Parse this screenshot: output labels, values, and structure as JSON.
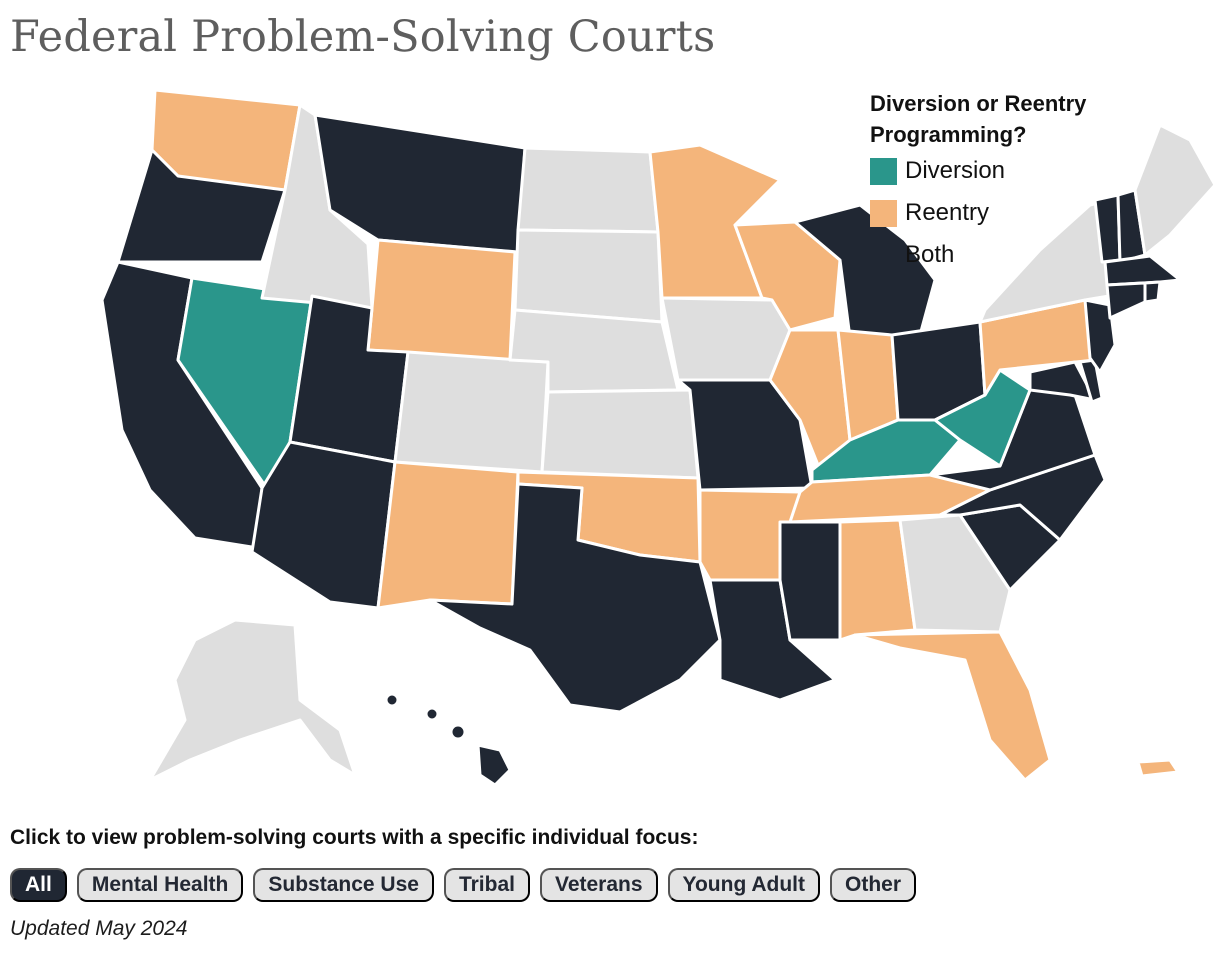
{
  "title": "Federal Problem-Solving Courts",
  "legend": {
    "title": "Diversion or Reentry Programming?",
    "items": [
      {
        "label": "Diversion",
        "color": "#2a968b"
      },
      {
        "label": "Reentry",
        "color": "#f4b57b"
      },
      {
        "label": "Both",
        "color": "#202733"
      }
    ]
  },
  "map": {
    "no_program_color": "#dedede",
    "states": [
      {
        "name": "Washington",
        "status": "Reentry"
      },
      {
        "name": "Oregon",
        "status": "Both"
      },
      {
        "name": "California",
        "status": "Both"
      },
      {
        "name": "Nevada",
        "status": "Diversion"
      },
      {
        "name": "Idaho",
        "status": "None"
      },
      {
        "name": "Montana",
        "status": "Both"
      },
      {
        "name": "Wyoming",
        "status": "Reentry"
      },
      {
        "name": "Utah",
        "status": "Both"
      },
      {
        "name": "Arizona",
        "status": "Both"
      },
      {
        "name": "Colorado",
        "status": "None"
      },
      {
        "name": "New Mexico",
        "status": "Reentry"
      },
      {
        "name": "North Dakota",
        "status": "None"
      },
      {
        "name": "South Dakota",
        "status": "None"
      },
      {
        "name": "Nebraska",
        "status": "None"
      },
      {
        "name": "Kansas",
        "status": "None"
      },
      {
        "name": "Oklahoma",
        "status": "Reentry"
      },
      {
        "name": "Texas",
        "status": "Both"
      },
      {
        "name": "Minnesota",
        "status": "Reentry"
      },
      {
        "name": "Iowa",
        "status": "None"
      },
      {
        "name": "Missouri",
        "status": "Both"
      },
      {
        "name": "Arkansas",
        "status": "Reentry"
      },
      {
        "name": "Louisiana",
        "status": "Both"
      },
      {
        "name": "Wisconsin",
        "status": "Reentry"
      },
      {
        "name": "Illinois",
        "status": "Reentry"
      },
      {
        "name": "Michigan",
        "status": "Both"
      },
      {
        "name": "Indiana",
        "status": "Reentry"
      },
      {
        "name": "Ohio",
        "status": "Both"
      },
      {
        "name": "Kentucky",
        "status": "Diversion"
      },
      {
        "name": "Tennessee",
        "status": "Reentry"
      },
      {
        "name": "Mississippi",
        "status": "Both"
      },
      {
        "name": "Alabama",
        "status": "Reentry"
      },
      {
        "name": "Georgia",
        "status": "None"
      },
      {
        "name": "Florida",
        "status": "Reentry"
      },
      {
        "name": "South Carolina",
        "status": "Both"
      },
      {
        "name": "North Carolina",
        "status": "Both"
      },
      {
        "name": "Virginia",
        "status": "Both"
      },
      {
        "name": "West Virginia",
        "status": "Diversion"
      },
      {
        "name": "Pennsylvania",
        "status": "Reentry"
      },
      {
        "name": "New York",
        "status": "None"
      },
      {
        "name": "New Jersey",
        "status": "Both"
      },
      {
        "name": "Delaware",
        "status": "Both"
      },
      {
        "name": "Maryland",
        "status": "Both"
      },
      {
        "name": "Vermont",
        "status": "Both"
      },
      {
        "name": "New Hampshire",
        "status": "Both"
      },
      {
        "name": "Maine",
        "status": "None"
      },
      {
        "name": "Massachusetts",
        "status": "Both"
      },
      {
        "name": "Connecticut",
        "status": "Both"
      },
      {
        "name": "Rhode Island",
        "status": "Both"
      },
      {
        "name": "Alaska",
        "status": "None"
      },
      {
        "name": "Hawaii",
        "status": "Both"
      },
      {
        "name": "Puerto Rico",
        "status": "Reentry"
      }
    ]
  },
  "filters": {
    "prompt": "Click to view problem-solving courts with a specific individual focus:",
    "options": [
      "All",
      "Mental Health",
      "Substance Use",
      "Tribal",
      "Veterans",
      "Young Adult",
      "Other"
    ],
    "selected": "All"
  },
  "updated": "Updated May 2024"
}
